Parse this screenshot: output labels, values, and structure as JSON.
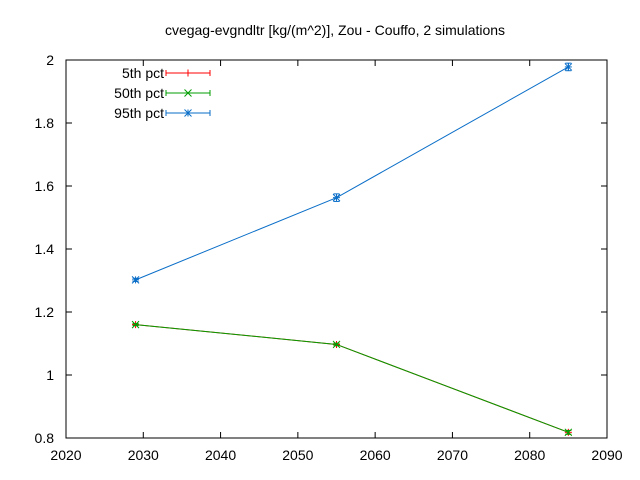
{
  "chart_data": {
    "type": "line",
    "title": "cvegag-evgndltr [kg/(m^2)], Zou - Couffo, 2 simulations",
    "xlim": [
      2020,
      2090
    ],
    "ylim": [
      0.8,
      2.0
    ],
    "x_ticks": [
      2020,
      2030,
      2040,
      2050,
      2060,
      2070,
      2080,
      2090
    ],
    "y_ticks": [
      0.8,
      1.0,
      1.2,
      1.4,
      1.6,
      1.8,
      2.0
    ],
    "x_tick_labels": [
      "2020",
      "2030",
      "2040",
      "2050",
      "2060",
      "2070",
      "2080",
      "2090"
    ],
    "y_tick_labels": [
      "0.8",
      "1",
      "1.2",
      "1.4",
      "1.6",
      "1.8",
      "2"
    ],
    "legend_position": "top-left",
    "series": [
      {
        "name": "5th pct",
        "color": "#ff0000",
        "marker": "plus",
        "x": [
          2029,
          2055,
          2085
        ],
        "y": [
          1.16,
          1.097,
          0.818
        ],
        "err": [
          0.003,
          0.004,
          0.006
        ]
      },
      {
        "name": "50th pct",
        "color": "#009e00",
        "marker": "x",
        "x": [
          2029,
          2055,
          2085
        ],
        "y": [
          1.16,
          1.097,
          0.818
        ],
        "err": [
          0.003,
          0.004,
          0.006
        ]
      },
      {
        "name": "95th pct",
        "color": "#0a6ec8",
        "marker": "star",
        "x": [
          2029,
          2055,
          2085
        ],
        "y": [
          1.302,
          1.563,
          1.978
        ],
        "err": [
          0.005,
          0.012,
          0.012
        ]
      }
    ]
  }
}
